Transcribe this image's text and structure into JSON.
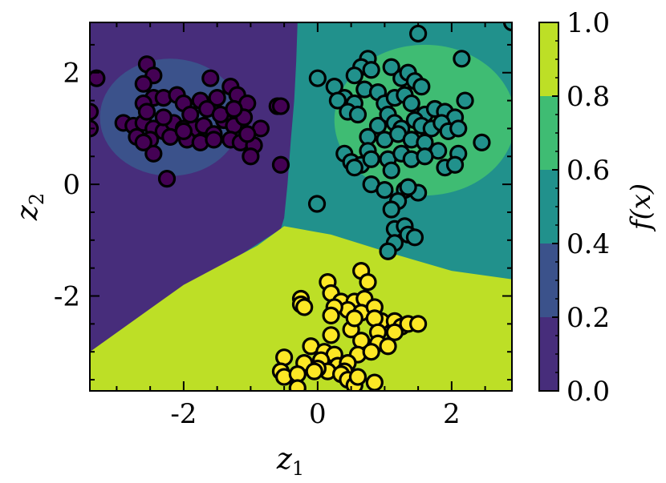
{
  "chart_data": {
    "type": "scatter",
    "title": "",
    "xlabel": "z",
    "xlabel_sub": "1",
    "ylabel": "z",
    "ylabel_sub": "2",
    "xlim": [
      -3.4,
      2.9
    ],
    "ylim": [
      -3.7,
      2.9
    ],
    "x_ticks": [
      -2,
      0,
      2
    ],
    "x_tick_labels": [
      "-2",
      "0",
      "2"
    ],
    "y_ticks": [
      -2,
      0,
      2
    ],
    "y_tick_labels": [
      "-2",
      "0",
      "2"
    ],
    "grid": false,
    "colorbar": {
      "label": "f(x)",
      "ticks": [
        0.0,
        0.2,
        0.4,
        0.6,
        0.8,
        1.0
      ],
      "tick_labels": [
        "0.0",
        "0.2",
        "0.4",
        "0.6",
        "0.8",
        "1.0"
      ],
      "levels": [
        {
          "range": [
            0.0,
            0.2
          ],
          "color": "#472d7b"
        },
        {
          "range": [
            0.2,
            0.4
          ],
          "color": "#3b528b"
        },
        {
          "range": [
            0.4,
            0.6
          ],
          "color": "#21918c"
        },
        {
          "range": [
            0.6,
            0.8
          ],
          "color": "#3fbc73"
        },
        {
          "range": [
            0.8,
            1.0
          ],
          "color": "#bddf26"
        }
      ]
    },
    "decision_regions": {
      "background_color": "#21918c",
      "left_region": {
        "value": 0.1,
        "color": "#472d7b",
        "boundary_points": [
          [
            -3.4,
            2.9
          ],
          [
            -0.3,
            2.9
          ],
          [
            -0.32,
            2.2
          ],
          [
            -0.35,
            1.5
          ],
          [
            -0.4,
            0.8
          ],
          [
            -0.45,
            0.0
          ],
          [
            -0.5,
            -0.6
          ],
          [
            -0.55,
            -0.8
          ],
          [
            -3.4,
            -3.0
          ]
        ]
      },
      "bottom_region": {
        "value": 0.9,
        "color": "#bddf26",
        "boundary_points": [
          [
            -3.4,
            -3.0
          ],
          [
            -2.0,
            -1.8
          ],
          [
            -0.9,
            -1.1
          ],
          [
            -0.5,
            -0.75
          ],
          [
            0.2,
            -0.9
          ],
          [
            1.0,
            -1.2
          ],
          [
            2.0,
            -1.55
          ],
          [
            2.9,
            -1.7
          ],
          [
            2.9,
            -3.7
          ],
          [
            -3.4,
            -3.7
          ]
        ]
      },
      "circle_left": {
        "center": [
          -2.2,
          1.2
        ],
        "radius": 1.05,
        "value": 0.3,
        "color": "#3b528b"
      },
      "circle_right": {
        "center": [
          1.6,
          1.15
        ],
        "radius": 1.35,
        "value": 0.7,
        "color": "#3fbc73"
      }
    },
    "series": [
      {
        "class": "0",
        "color": "#440154",
        "points": [
          [
            -3.3,
            1.9
          ],
          [
            -3.4,
            1.3
          ],
          [
            -3.4,
            1.0
          ],
          [
            -2.55,
            2.15
          ],
          [
            -2.45,
            1.95
          ],
          [
            -2.6,
            1.8
          ],
          [
            -2.45,
            1.55
          ],
          [
            -2.6,
            1.45
          ],
          [
            -2.3,
            1.55
          ],
          [
            -2.1,
            1.6
          ],
          [
            -2.0,
            1.45
          ],
          [
            -1.75,
            1.5
          ],
          [
            -1.6,
            1.9
          ],
          [
            -1.5,
            1.55
          ],
          [
            -1.3,
            1.75
          ],
          [
            -1.2,
            1.6
          ],
          [
            -1.05,
            1.45
          ],
          [
            -2.9,
            1.1
          ],
          [
            -2.75,
            1.05
          ],
          [
            -2.6,
            1.1
          ],
          [
            -2.45,
            1.0
          ],
          [
            -2.3,
            0.95
          ],
          [
            -2.15,
            1.1
          ],
          [
            -2.0,
            1.0
          ],
          [
            -1.85,
            1.0
          ],
          [
            -1.7,
            1.05
          ],
          [
            -1.55,
            0.9
          ],
          [
            -1.4,
            1.15
          ],
          [
            -1.25,
            1.05
          ],
          [
            -1.1,
            1.2
          ],
          [
            -0.85,
            1.0
          ],
          [
            -2.7,
            0.85
          ],
          [
            -2.5,
            0.8
          ],
          [
            -2.2,
            0.85
          ],
          [
            -1.95,
            0.8
          ],
          [
            -1.75,
            0.75
          ],
          [
            -1.55,
            0.8
          ],
          [
            -1.3,
            0.8
          ],
          [
            -1.15,
            0.75
          ],
          [
            -0.95,
            0.7
          ],
          [
            -2.45,
            0.55
          ],
          [
            -1.0,
            0.5
          ],
          [
            -2.25,
            0.1
          ],
          [
            -0.55,
            0.35
          ],
          [
            -0.6,
            1.4
          ],
          [
            -0.55,
            1.4
          ],
          [
            -2.55,
            1.3
          ],
          [
            -2.3,
            1.2
          ],
          [
            -1.9,
            1.25
          ],
          [
            -1.65,
            1.35
          ],
          [
            -1.45,
            1.25
          ],
          [
            -2.0,
            0.95
          ],
          [
            -2.6,
            0.75
          ],
          [
            -1.05,
            0.9
          ],
          [
            -1.25,
            1.35
          ]
        ]
      },
      {
        "class": "1",
        "color": "#21918c",
        "points": [
          [
            1.5,
            2.7
          ],
          [
            2.9,
            2.9
          ],
          [
            0.75,
            2.25
          ],
          [
            0.65,
            2.1
          ],
          [
            0.8,
            2.05
          ],
          [
            0.55,
            1.95
          ],
          [
            0.7,
            1.7
          ],
          [
            1.1,
            2.1
          ],
          [
            1.25,
            1.9
          ],
          [
            1.35,
            2.0
          ],
          [
            1.45,
            1.85
          ],
          [
            1.55,
            1.75
          ],
          [
            2.15,
            2.25
          ],
          [
            0.0,
            1.9
          ],
          [
            0.25,
            1.75
          ],
          [
            0.4,
            1.55
          ],
          [
            0.55,
            1.45
          ],
          [
            0.9,
            1.65
          ],
          [
            1.0,
            1.45
          ],
          [
            1.15,
            1.55
          ],
          [
            1.3,
            1.6
          ],
          [
            1.4,
            1.45
          ],
          [
            1.6,
            1.25
          ],
          [
            1.75,
            1.35
          ],
          [
            1.9,
            1.3
          ],
          [
            2.05,
            1.2
          ],
          [
            2.2,
            1.5
          ],
          [
            0.3,
            1.5
          ],
          [
            0.45,
            1.3
          ],
          [
            0.6,
            1.25
          ],
          [
            0.9,
            1.05
          ],
          [
            1.05,
            1.25
          ],
          [
            1.15,
            1.1
          ],
          [
            1.25,
            1.0
          ],
          [
            1.45,
            1.15
          ],
          [
            1.55,
            1.05
          ],
          [
            1.7,
            1.0
          ],
          [
            1.85,
            1.1
          ],
          [
            1.95,
            0.95
          ],
          [
            2.1,
            1.0
          ],
          [
            0.75,
            0.85
          ],
          [
            1.0,
            0.8
          ],
          [
            1.2,
            0.9
          ],
          [
            1.4,
            0.8
          ],
          [
            1.6,
            0.75
          ],
          [
            1.8,
            0.6
          ],
          [
            2.1,
            0.55
          ],
          [
            2.45,
            0.75
          ],
          [
            0.4,
            0.55
          ],
          [
            0.5,
            0.4
          ],
          [
            0.65,
            0.35
          ],
          [
            0.75,
            0.6
          ],
          [
            0.8,
            0.45
          ],
          [
            1.05,
            0.45
          ],
          [
            1.25,
            0.55
          ],
          [
            1.4,
            0.45
          ],
          [
            1.6,
            0.5
          ],
          [
            1.9,
            0.3
          ],
          [
            2.05,
            0.35
          ],
          [
            0.55,
            0.3
          ],
          [
            1.1,
            0.25
          ],
          [
            0.8,
            0.0
          ],
          [
            1.0,
            -0.1
          ],
          [
            1.3,
            -0.1
          ],
          [
            1.5,
            -0.15
          ],
          [
            1.35,
            -0.05
          ],
          [
            1.2,
            -0.3
          ],
          [
            1.1,
            -0.45
          ],
          [
            -0.01,
            -0.35
          ],
          [
            1.15,
            -0.8
          ],
          [
            1.3,
            -0.75
          ],
          [
            1.15,
            -1.05
          ],
          [
            1.35,
            -0.9
          ],
          [
            1.05,
            -1.2
          ],
          [
            1.45,
            -0.95
          ]
        ]
      },
      {
        "class": "2",
        "color": "#fde725",
        "points": [
          [
            0.15,
            -1.75
          ],
          [
            0.65,
            -1.55
          ],
          [
            0.75,
            -1.75
          ],
          [
            -0.25,
            -2.05
          ],
          [
            -0.25,
            -2.15
          ],
          [
            0.2,
            -1.95
          ],
          [
            0.35,
            -2.1
          ],
          [
            0.55,
            -2.1
          ],
          [
            0.7,
            -2.05
          ],
          [
            -0.2,
            -2.2
          ],
          [
            0.45,
            -2.25
          ],
          [
            0.25,
            -2.2
          ],
          [
            0.65,
            -2.3
          ],
          [
            0.85,
            -2.2
          ],
          [
            0.95,
            -2.45
          ],
          [
            1.15,
            -2.45
          ],
          [
            0.85,
            -2.4
          ],
          [
            1.25,
            -2.55
          ],
          [
            1.35,
            -2.5
          ],
          [
            1.5,
            -2.5
          ],
          [
            1.15,
            -2.65
          ],
          [
            0.9,
            -2.65
          ],
          [
            0.5,
            -2.6
          ],
          [
            0.2,
            -2.7
          ],
          [
            0.65,
            -2.8
          ],
          [
            0.9,
            -2.85
          ],
          [
            1.05,
            -2.9
          ],
          [
            0.6,
            -3.05
          ],
          [
            0.8,
            -3.0
          ],
          [
            -0.1,
            -2.9
          ],
          [
            0.1,
            -3.0
          ],
          [
            0.25,
            -3.05
          ],
          [
            -0.5,
            -3.1
          ],
          [
            -0.2,
            -3.2
          ],
          [
            0.05,
            -3.15
          ],
          [
            0.3,
            -3.25
          ],
          [
            0.45,
            -3.2
          ],
          [
            0.15,
            -3.35
          ],
          [
            0.4,
            -3.35
          ],
          [
            -0.55,
            -3.35
          ],
          [
            -0.5,
            -3.45
          ],
          [
            -0.3,
            -3.4
          ],
          [
            0.0,
            -3.3
          ],
          [
            0.35,
            -3.4
          ],
          [
            0.45,
            -3.5
          ],
          [
            0.55,
            -3.6
          ],
          [
            0.85,
            -3.55
          ],
          [
            -0.3,
            -3.65
          ],
          [
            0.2,
            -2.35
          ],
          [
            0.55,
            -2.4
          ],
          [
            -0.05,
            -3.35
          ],
          [
            0.6,
            -3.45
          ]
        ]
      }
    ]
  }
}
